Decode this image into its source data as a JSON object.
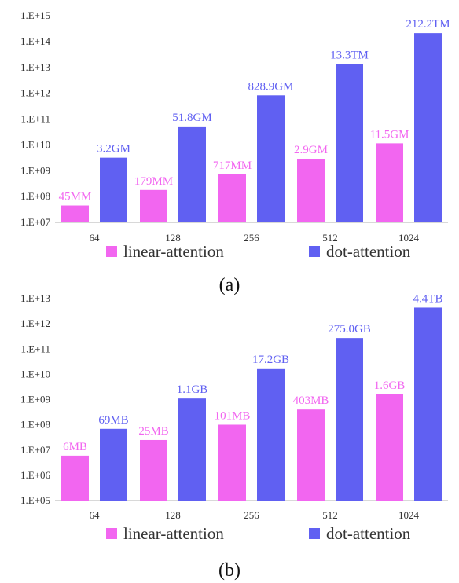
{
  "colors": {
    "linear": "#f266f0",
    "dot": "#6060f2",
    "axis": "#b0b0b0"
  },
  "chart_data": [
    {
      "type": "bar",
      "log_scale": true,
      "caption": "(a)",
      "categories": [
        "64",
        "128",
        "256",
        "512",
        "1024"
      ],
      "y_ticks": [
        "1.E+07",
        "1.E+08",
        "1.E+09",
        "1.E+10",
        "1.E+11",
        "1.E+12",
        "1.E+13",
        "1.E+14",
        "1.E+15"
      ],
      "ylim": [
        10000000,
        1000000000000000
      ],
      "legend_position": "bottom",
      "series": [
        {
          "name": "linear-attention",
          "values": [
            45000000,
            179000000,
            717000000,
            2900000000,
            11500000000
          ],
          "labels": [
            "45MM",
            "179MM",
            "717MM",
            "2.9GM",
            "11.5GM"
          ]
        },
        {
          "name": "dot-attention",
          "values": [
            3200000000,
            51800000000,
            828900000000,
            13300000000000,
            212200000000000
          ],
          "labels": [
            "3.2GM",
            "51.8GM",
            "828.9GM",
            "13.3TM",
            "212.2TM"
          ]
        }
      ]
    },
    {
      "type": "bar",
      "log_scale": true,
      "caption": "(b)",
      "categories": [
        "64",
        "128",
        "256",
        "512",
        "1024"
      ],
      "y_ticks": [
        "1.E+05",
        "1.E+06",
        "1.E+07",
        "1.E+08",
        "1.E+09",
        "1.E+10",
        "1.E+11",
        "1.E+12",
        "1.E+13"
      ],
      "ylim": [
        100000,
        10000000000000
      ],
      "legend_position": "bottom",
      "series": [
        {
          "name": "linear-attention",
          "values": [
            6000000,
            25000000,
            101000000,
            403000000,
            1600000000
          ],
          "labels": [
            "6MB",
            "25MB",
            "101MB",
            "403MB",
            "1.6GB"
          ]
        },
        {
          "name": "dot-attention",
          "values": [
            69000000,
            1100000000,
            17200000000,
            275000000000,
            4400000000000
          ],
          "labels": [
            "69MB",
            "1.1GB",
            "17.2GB",
            "275.0GB",
            "4.4TB"
          ]
        }
      ]
    }
  ]
}
